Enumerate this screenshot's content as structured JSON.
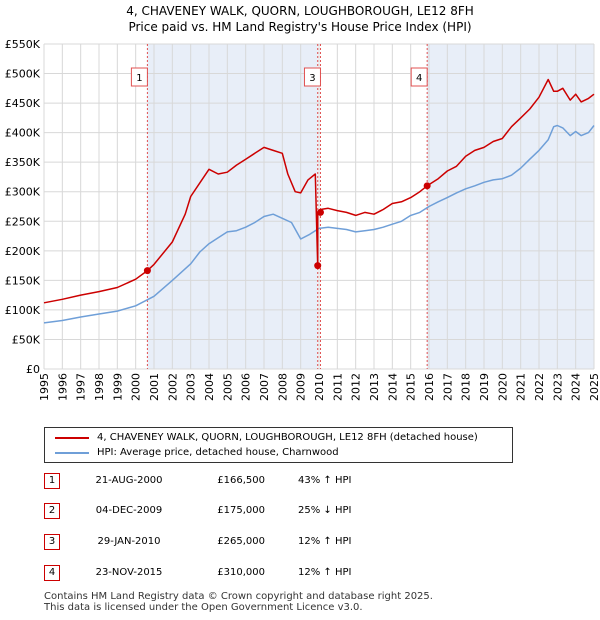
{
  "title_line1": "4, CHAVENEY WALK, QUORN, LOUGHBOROUGH, LE12 8FH",
  "title_line2": "Price paid vs. HM Land Registry's House Price Index (HPI)",
  "colors": {
    "property": "#cc0000",
    "hpi": "#6f9fd8",
    "shade": "#e8eef8",
    "vline": "#e05050",
    "grid": "#d8d8d8"
  },
  "legend": {
    "property_label": "4, CHAVENEY WALK, QUORN, LOUGHBOROUGH, LE12 8FH (detached house)",
    "hpi_label": "HPI: Average price, detached house, Charnwood"
  },
  "sales": [
    {
      "num": "1",
      "date": "21-AUG-2000",
      "price": "£166,500",
      "hpi": "43% ↑ HPI"
    },
    {
      "num": "2",
      "date": "04-DEC-2009",
      "price": "£175,000",
      "hpi": "25% ↓ HPI"
    },
    {
      "num": "3",
      "date": "29-JAN-2010",
      "price": "£265,000",
      "hpi": "12% ↑ HPI"
    },
    {
      "num": "4",
      "date": "23-NOV-2015",
      "price": "£310,000",
      "hpi": "12% ↑ HPI"
    }
  ],
  "footer_line1": "Contains HM Land Registry data © Crown copyright and database right 2025.",
  "footer_line2": "This data is licensed under the Open Government Licence v3.0.",
  "chart_data": {
    "type": "line",
    "title": "4, CHAVENEY WALK, QUORN, LOUGHBOROUGH, LE12 8FH",
    "subtitle": "Price paid vs. HM Land Registry's House Price Index (HPI)",
    "xlabel": "",
    "ylabel": "",
    "xlim": [
      1995,
      2025
    ],
    "ylim": [
      0,
      550000
    ],
    "y_ticks": [
      0,
      50000,
      100000,
      150000,
      200000,
      250000,
      300000,
      350000,
      400000,
      450000,
      500000,
      550000
    ],
    "y_tick_labels": [
      "£0",
      "£50K",
      "£100K",
      "£150K",
      "£200K",
      "£250K",
      "£300K",
      "£350K",
      "£400K",
      "£450K",
      "£500K",
      "£550K"
    ],
    "x_ticks": [
      1995,
      1996,
      1997,
      1998,
      1999,
      2000,
      2001,
      2002,
      2003,
      2004,
      2005,
      2006,
      2007,
      2008,
      2009,
      2010,
      2011,
      2012,
      2013,
      2014,
      2015,
      2016,
      2017,
      2018,
      2019,
      2020,
      2021,
      2022,
      2023,
      2024,
      2025
    ],
    "x_tick_labels": [
      "1995",
      "1996",
      "1997",
      "1998",
      "1999",
      "2000",
      "2001",
      "2002",
      "2003",
      "2004",
      "2005",
      "2006",
      "2007",
      "2008",
      "2009",
      "2010",
      "2011",
      "2012",
      "2013",
      "2014",
      "2015",
      "2016",
      "2017",
      "2018",
      "2019",
      "2020",
      "2021",
      "2022",
      "2023",
      "2024",
      "2025"
    ],
    "grid": true,
    "legend_position": "below chart",
    "series": [
      {
        "name": "4, CHAVENEY WALK, QUORN, LOUGHBOROUGH, LE12 8FH (detached house)",
        "x": [
          1995,
          1996,
          1997,
          1998,
          1999,
          2000,
          2000.64,
          2001,
          2002,
          2002.7,
          2003,
          2003.5,
          2004,
          2004.5,
          2005,
          2005.5,
          2006,
          2006.5,
          2007,
          2007.5,
          2008,
          2008.3,
          2008.7,
          2009,
          2009.4,
          2009.8,
          2009.93,
          2009.93,
          2010.08,
          2010.08,
          2010.5,
          2011,
          2011.5,
          2012,
          2012.5,
          2013,
          2013.5,
          2014,
          2014.5,
          2015,
          2015.5,
          2015.9,
          2016.5,
          2017,
          2017.5,
          2018,
          2018.5,
          2019,
          2019.5,
          2020,
          2020.5,
          2021,
          2021.5,
          2022,
          2022.5,
          2022.8,
          2023,
          2023.3,
          2023.7,
          2024,
          2024.3,
          2024.7,
          2025
        ],
        "y": [
          112000,
          118000,
          125000,
          131000,
          138000,
          152000,
          166500,
          177000,
          215000,
          262000,
          292000,
          315000,
          338000,
          330000,
          333000,
          345000,
          355000,
          365000,
          375000,
          370000,
          365000,
          330000,
          300000,
          298000,
          320000,
          330000,
          175000,
          265000,
          265000,
          270000,
          272000,
          268000,
          265000,
          260000,
          265000,
          262000,
          270000,
          280000,
          283000,
          290000,
          300000,
          310000,
          322000,
          335000,
          343000,
          360000,
          370000,
          375000,
          385000,
          390000,
          410000,
          425000,
          440000,
          460000,
          490000,
          470000,
          470000,
          475000,
          455000,
          465000,
          452000,
          458000,
          465000
        ]
      },
      {
        "name": "HPI: Average price, detached house, Charnwood",
        "x": [
          1995,
          1996,
          1997,
          1998,
          1999,
          2000,
          2001,
          2002,
          2003,
          2003.5,
          2004,
          2004.5,
          2005,
          2005.5,
          2006,
          2006.5,
          2007,
          2007.5,
          2008,
          2008.5,
          2009,
          2009.5,
          2010,
          2010.5,
          2011,
          2011.5,
          2012,
          2012.5,
          2013,
          2013.5,
          2014,
          2014.5,
          2015,
          2015.5,
          2016,
          2016.5,
          2017,
          2017.5,
          2018,
          2018.5,
          2019,
          2019.5,
          2020,
          2020.5,
          2021,
          2021.5,
          2022,
          2022.5,
          2022.8,
          2023,
          2023.3,
          2023.7,
          2024,
          2024.3,
          2024.7,
          2025
        ],
        "y": [
          78000,
          82000,
          88000,
          93000,
          98000,
          107000,
          123000,
          150000,
          178000,
          198000,
          212000,
          222000,
          232000,
          234000,
          240000,
          248000,
          258000,
          262000,
          255000,
          248000,
          220000,
          228000,
          238000,
          240000,
          238000,
          236000,
          232000,
          234000,
          236000,
          240000,
          245000,
          250000,
          260000,
          265000,
          275000,
          283000,
          290000,
          298000,
          305000,
          310000,
          316000,
          320000,
          322000,
          328000,
          340000,
          355000,
          370000,
          388000,
          410000,
          412000,
          408000,
          395000,
          402000,
          395000,
          400000,
          412000
        ]
      }
    ],
    "sales": [
      {
        "label": "1",
        "x": 2000.64,
        "y": 166500,
        "vline_x": 2000.64
      },
      {
        "label": "2",
        "x": 2009.93,
        "y": 175000,
        "vline_x": 2009.93
      },
      {
        "label": "3",
        "x": 2010.08,
        "y": 265000,
        "vline_x": 2010.08
      },
      {
        "label": "4",
        "x": 2015.9,
        "y": 310000,
        "vline_x": 2015.9
      }
    ],
    "shaded_regions": [
      [
        2000.64,
        2009.93
      ],
      [
        2015.9,
        2025
      ]
    ]
  }
}
